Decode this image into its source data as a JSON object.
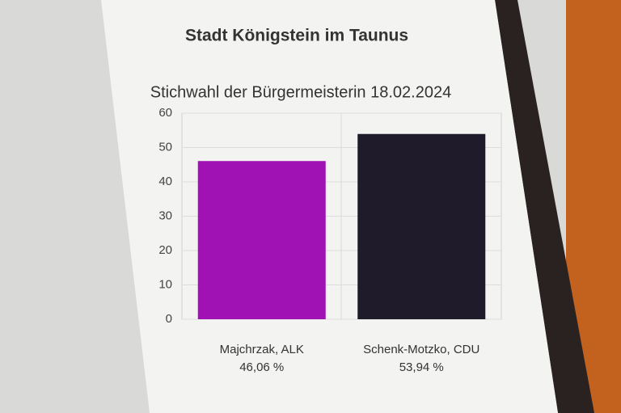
{
  "chart_data": {
    "type": "bar",
    "title": "Stadt Königstein im Taunus",
    "subtitle": "Stichwahl der Bürgermeisterin 18.02.2024",
    "categories": [
      "Majchrzak, ALK",
      "Schenk-Motzko, CDU"
    ],
    "values": [
      46.06,
      53.94
    ],
    "value_labels": [
      "46,06 %",
      "53,94 %"
    ],
    "colors": [
      "#a012b4",
      "#1f1b2b"
    ],
    "ylim": [
      0,
      60
    ],
    "yticks": [
      0,
      10,
      20,
      30,
      40,
      50,
      60
    ],
    "grid": true
  }
}
